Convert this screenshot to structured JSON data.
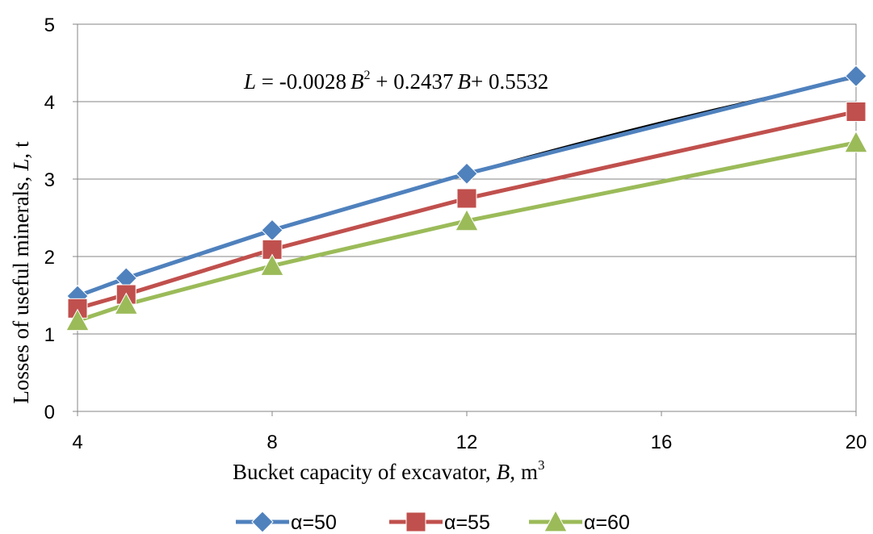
{
  "chart_data": {
    "type": "line",
    "x": [
      4,
      5,
      8,
      12,
      20
    ],
    "xlim": [
      4,
      20
    ],
    "ylim": [
      0,
      5
    ],
    "xticks": [
      4,
      8,
      12,
      16,
      20
    ],
    "yticks": [
      0,
      1,
      2,
      3,
      4,
      5
    ],
    "grid": "horizontal",
    "legend_position": "bottom",
    "xlabel": "Bucket capacity  of excavator,",
    "xlabel_var": "B,",
    "xlabel_unit": "m",
    "xlabel_unit_sup": "3",
    "ylabel": "Losses of useful minerals,",
    "ylabel_var": "L,",
    "ylabel_unit": "t",
    "series": [
      {
        "name": "α=50",
        "values": [
          1.49,
          1.72,
          2.34,
          3.07,
          4.33
        ],
        "color": "#4F81BD",
        "marker": "diamond"
      },
      {
        "name": "α=55",
        "values": [
          1.33,
          1.51,
          2.09,
          2.75,
          3.87
        ],
        "color": "#C0504D",
        "marker": "square"
      },
      {
        "name": "α=60",
        "values": [
          1.17,
          1.38,
          1.88,
          2.46,
          3.47
        ],
        "color": "#9BBB59",
        "marker": "triangle"
      }
    ],
    "trendline": {
      "coefficients": {
        "a": -0.0028,
        "b": 0.2437,
        "c": 0.5532
      },
      "color": "#000000",
      "equation": {
        "lhs": "L",
        "eq_sign": " = -0.0028",
        "var1": "B",
        "sup": "2",
        "term2": " + 0.2437",
        "var2": "B",
        "term3": "+ 0.5532"
      }
    }
  }
}
